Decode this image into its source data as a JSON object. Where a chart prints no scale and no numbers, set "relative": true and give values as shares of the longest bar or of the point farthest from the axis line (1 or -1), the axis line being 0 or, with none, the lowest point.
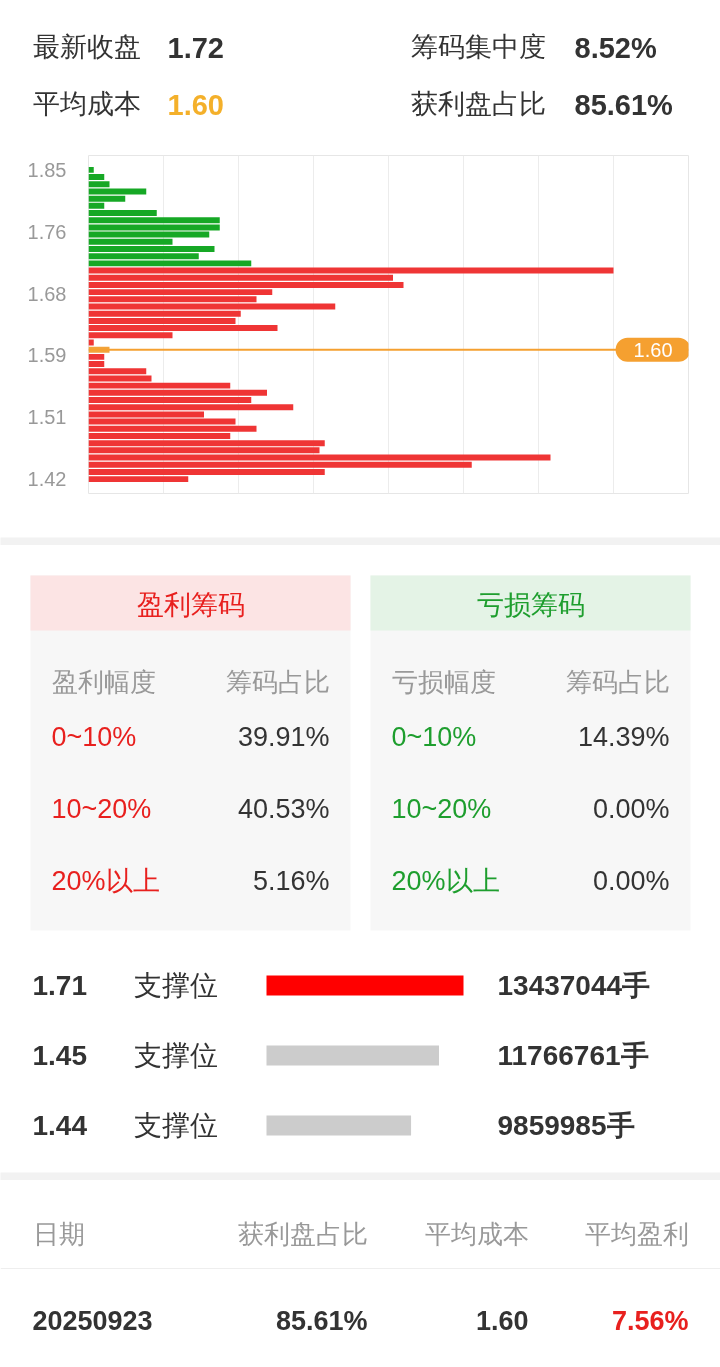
{
  "chart_data": [
    {
      "type": "other",
      "annotations": [
        "最新收盘",
        "1.72",
        "筹码集中度",
        "8.52%",
        "平均成本",
        "1.60",
        "获利盘占比",
        "85.61%"
      ],
      "colors": [
        "#333333",
        "#333333",
        "#333333",
        "#333333",
        "#333333",
        "#f4b02a",
        "#333333",
        "#333333"
      ]
    },
    {
      "type": "bar",
      "orientation": "horizontal",
      "relative": true,
      "tick_labels": "y",
      "grid": "x",
      "x": [
        1.85,
        1.84,
        1.83,
        1.82,
        1.81,
        1.8,
        1.79,
        1.78,
        1.77,
        1.76,
        1.75,
        1.74,
        1.73,
        1.72,
        1.71,
        1.7,
        1.69,
        1.68,
        1.67,
        1.66,
        1.65,
        1.64,
        1.63,
        1.62,
        1.61,
        1.6,
        1.59,
        1.58,
        1.57,
        1.56,
        1.55,
        1.54,
        1.53,
        1.52,
        1.51,
        1.5,
        1.49,
        1.48,
        1.47,
        1.46,
        1.45,
        1.44,
        1.43,
        1.42
      ],
      "values": [
        0.01,
        0.03,
        0.04,
        0.11,
        0.07,
        0.03,
        0.13,
        0.25,
        0.25,
        0.23,
        0.16,
        0.24,
        0.21,
        0.31,
        1,
        0.58,
        0.6,
        0.35,
        0.32,
        0.47,
        0.29,
        0.28,
        0.36,
        0.16,
        0.01,
        0.04,
        0.03,
        0.03,
        0.11,
        0.12,
        0.27,
        0.34,
        0.31,
        0.39,
        0.22,
        0.28,
        0.32,
        0.27,
        0.45,
        0.44,
        0.88,
        0.73,
        0.45,
        0.19
      ],
      "colors": [
        "#16a825",
        "#16a825",
        "#16a825",
        "#16a825",
        "#16a825",
        "#16a825",
        "#16a825",
        "#16a825",
        "#16a825",
        "#16a825",
        "#16a825",
        "#16a825",
        "#16a825",
        "#16a825",
        "#ef3535",
        "#ef3535",
        "#ef3535",
        "#ef3535",
        "#ef3535",
        "#ef3535",
        "#ef3535",
        "#ef3535",
        "#ef3535",
        "#ef3535",
        "#ef3535",
        "#f2a33a",
        "#ef3535",
        "#ef3535",
        "#ef3535",
        "#ef3535",
        "#ef3535",
        "#ef3535",
        "#ef3535",
        "#ef3535",
        "#ef3535",
        "#ef3535",
        "#ef3535",
        "#ef3535",
        "#ef3535",
        "#ef3535",
        "#ef3535",
        "#ef3535",
        "#ef3535",
        "#ef3535"
      ],
      "ylim": [
        1.4,
        1.87
      ],
      "yticks": [
        1.85,
        {
          "value": 1.764,
          "label": "1.76"
        },
        {
          "value": 1.678,
          "label": "1.68"
        },
        {
          "value": 1.592,
          "label": "1.59"
        },
        {
          "value": 1.506,
          "label": "1.51"
        },
        1.42
      ],
      "ref_lines": [
        {
          "axis": "y",
          "value": 1.6,
          "label": "1.60",
          "color": "#f5a030"
        }
      ]
    },
    {
      "type": "other",
      "title": "盈利筹码",
      "annotations": [
        "盈利幅度",
        "筹码占比",
        "0~10%",
        "39.91%",
        "10~20%",
        "40.53%",
        "20%以上",
        "5.16%"
      ],
      "colors": [
        "#999999",
        "#999999",
        "#e8201e",
        "#333333",
        "#e8201e",
        "#333333",
        "#e8201e",
        "#333333"
      ]
    },
    {
      "type": "other",
      "title": "亏损筹码",
      "annotations": [
        "亏损幅度",
        "筹码占比",
        "0~10%",
        "14.39%",
        "10~20%",
        "0.00%",
        "20%以上",
        "0.00%"
      ],
      "colors": [
        "#999999",
        "#999999",
        "#1e9e2e",
        "#333333",
        "#1e9e2e",
        "#333333",
        "#1e9e2e",
        "#333333"
      ]
    },
    {
      "type": "bar",
      "orientation": "horizontal",
      "tick_labels": "y",
      "categories": [
        "1.71",
        "1.45",
        "1.44"
      ],
      "values": [
        13437044,
        11766761,
        9859985
      ],
      "value_labels": [
        "13437044手",
        "11766761手",
        "9859985手"
      ],
      "colors": [
        "#ff0000",
        "#cccccc",
        "#cccccc"
      ],
      "annotations": [
        "支撑位",
        "支撑位",
        "支撑位"
      ]
    },
    {
      "type": "other",
      "annotations": [
        "日期",
        "获利盘占比",
        "平均成本",
        "平均盈利",
        "20250923",
        "85.61%",
        "1.60",
        "7.56%"
      ],
      "colors": [
        "#999999",
        "#999999",
        "#999999",
        "#999999",
        "#333333",
        "#333333",
        "#333333",
        "#e8201e"
      ]
    }
  ]
}
